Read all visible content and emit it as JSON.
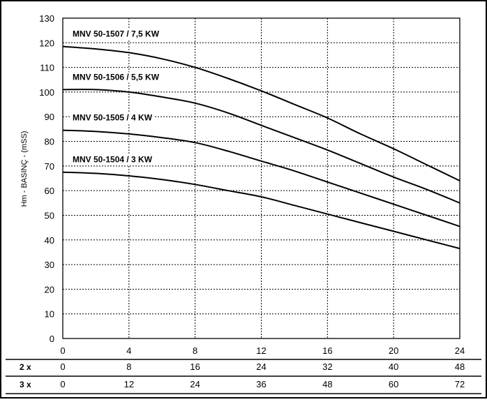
{
  "chart_data": {
    "type": "line",
    "title": "",
    "xlabel": "",
    "ylabel": "Hm - BASINÇ - (mSS)",
    "ylim": [
      0,
      130
    ],
    "xlim": [
      0,
      24
    ],
    "grid": true,
    "y_ticks": [
      "0",
      "10",
      "20",
      "30",
      "40",
      "50",
      "60",
      "70",
      "80",
      "90",
      "100",
      "110",
      "120",
      "130"
    ],
    "x_ticks": [
      "0",
      "4",
      "8",
      "12",
      "16",
      "20",
      "24"
    ],
    "extra_x_rows": [
      {
        "label": "2 x",
        "ticks": [
          "0",
          "8",
          "16",
          "24",
          "32",
          "40",
          "48"
        ]
      },
      {
        "label": "3 x",
        "ticks": [
          "0",
          "12",
          "24",
          "36",
          "48",
          "60",
          "72"
        ]
      }
    ],
    "series": [
      {
        "name": "MNV 50-1507 / 7,5 KW",
        "x": [
          0,
          2,
          4,
          6,
          8,
          10,
          12,
          14,
          16,
          18,
          20,
          22,
          24
        ],
        "y": [
          118.5,
          117.5,
          116,
          113.5,
          110,
          105.5,
          100.5,
          95,
          89.5,
          83,
          77,
          70.5,
          64
        ]
      },
      {
        "name": "MNV 50-1506 / 5,5 KW",
        "x": [
          0,
          2,
          4,
          6,
          8,
          10,
          12,
          14,
          16,
          18,
          20,
          22,
          24
        ],
        "y": [
          101,
          101,
          100,
          98,
          95.5,
          91.5,
          86.5,
          81.5,
          76.5,
          71,
          65.5,
          60.5,
          55
        ]
      },
      {
        "name": "MNV 50-1505 / 4 KW",
        "x": [
          0,
          2,
          4,
          6,
          8,
          10,
          12,
          14,
          16,
          18,
          20,
          22,
          24
        ],
        "y": [
          84.5,
          84,
          83,
          81.5,
          79.5,
          76,
          72,
          68,
          63.5,
          59,
          54.5,
          50,
          45.5
        ]
      },
      {
        "name": "MNV 50-1504 / 3 KW",
        "x": [
          0,
          2,
          4,
          6,
          8,
          10,
          12,
          14,
          16,
          18,
          20,
          22,
          24
        ],
        "y": [
          67.5,
          67,
          66,
          64.5,
          62.5,
          60,
          57.5,
          54,
          50.5,
          47,
          43.5,
          40,
          36.5
        ]
      }
    ]
  }
}
